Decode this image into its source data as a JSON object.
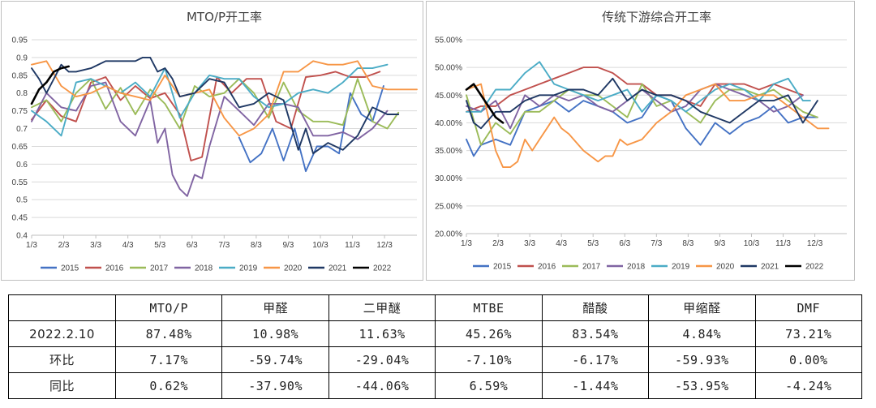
{
  "chart_data": [
    {
      "type": "line",
      "title": "MTO/P开工率",
      "ylim": [
        0.4,
        0.95
      ],
      "yticks": [
        "0.4",
        "0.45",
        "0.5",
        "0.55",
        "0.6",
        "0.65",
        "0.7",
        "0.75",
        "0.8",
        "0.85",
        "0.9",
        "0.95"
      ],
      "xlim": [
        0,
        52
      ],
      "xtick_labels": [
        "1/3",
        "2/3",
        "3/3",
        "4/3",
        "5/3",
        "6/3",
        "7/3",
        "8/3",
        "9/3",
        "10/3",
        "11/3",
        "12/3"
      ],
      "legend_position": "bottom",
      "series": [
        {
          "name": "2015",
          "color": "#4472C4",
          "x": [
            28,
            29.5,
            31,
            32.5,
            34,
            35.5,
            37,
            38.5,
            40,
            41.5,
            43,
            44.5,
            46,
            47.5
          ],
          "values": [
            0.675,
            0.605,
            0.63,
            0.7,
            0.61,
            0.7,
            0.58,
            0.65,
            0.65,
            0.63,
            0.8,
            0.74,
            0.72,
            0.82
          ]
        },
        {
          "name": "2016",
          "color": "#C0504D",
          "x": [
            0,
            2,
            4,
            6,
            8,
            10,
            12,
            14,
            16,
            18,
            20,
            21.5,
            23,
            25,
            27,
            29,
            31,
            33,
            35,
            37,
            39,
            41,
            43,
            45,
            47
          ],
          "values": [
            0.725,
            0.78,
            0.735,
            0.72,
            0.83,
            0.845,
            0.78,
            0.82,
            0.785,
            0.8,
            0.74,
            0.61,
            0.62,
            0.845,
            0.8,
            0.84,
            0.84,
            0.72,
            0.7,
            0.845,
            0.85,
            0.86,
            0.845,
            0.845,
            0.86
          ]
        },
        {
          "name": "2017",
          "color": "#9BBB59",
          "x": [
            0,
            2,
            4,
            6,
            8,
            10,
            12,
            14,
            16,
            18,
            20,
            22,
            24,
            26,
            28,
            30,
            32,
            34,
            36,
            38,
            40,
            42,
            44,
            46,
            48,
            49.5
          ],
          "values": [
            0.76,
            0.78,
            0.72,
            0.8,
            0.84,
            0.755,
            0.815,
            0.74,
            0.81,
            0.77,
            0.7,
            0.82,
            0.79,
            0.8,
            0.84,
            0.8,
            0.73,
            0.83,
            0.75,
            0.72,
            0.72,
            0.71,
            0.84,
            0.72,
            0.7,
            0.745
          ]
        },
        {
          "name": "2018",
          "color": "#8064A2",
          "x": [
            0,
            2,
            4,
            6,
            8,
            10,
            12,
            14,
            16,
            17,
            18,
            19,
            20,
            21,
            22,
            23,
            24,
            26,
            28,
            30,
            32,
            34,
            36,
            38,
            40,
            42,
            44,
            46,
            48
          ],
          "values": [
            0.72,
            0.8,
            0.76,
            0.75,
            0.82,
            0.83,
            0.72,
            0.68,
            0.78,
            0.66,
            0.7,
            0.57,
            0.53,
            0.51,
            0.57,
            0.56,
            0.65,
            0.79,
            0.75,
            0.71,
            0.77,
            0.77,
            0.76,
            0.68,
            0.68,
            0.69,
            0.67,
            0.7,
            0.75
          ]
        },
        {
          "name": "2019",
          "color": "#4BACC6",
          "x": [
            0,
            2,
            4,
            6,
            8,
            10,
            12,
            14,
            16,
            18,
            20,
            22,
            24,
            26,
            28,
            30,
            32,
            34,
            36,
            38,
            40,
            42,
            44,
            46,
            48
          ],
          "values": [
            0.75,
            0.72,
            0.68,
            0.83,
            0.84,
            0.82,
            0.8,
            0.83,
            0.79,
            0.87,
            0.73,
            0.8,
            0.85,
            0.84,
            0.84,
            0.79,
            0.76,
            0.77,
            0.8,
            0.81,
            0.8,
            0.83,
            0.87,
            0.87,
            0.88
          ]
        },
        {
          "name": "2020",
          "color": "#F79646",
          "x": [
            0,
            2,
            4,
            6,
            8,
            10,
            12,
            14,
            16,
            18,
            20,
            22,
            24,
            26,
            28,
            30,
            32,
            34,
            36,
            38,
            40,
            42,
            44,
            46,
            48,
            50,
            52
          ],
          "values": [
            0.88,
            0.89,
            0.82,
            0.79,
            0.8,
            0.82,
            0.8,
            0.79,
            0.78,
            0.85,
            0.79,
            0.8,
            0.81,
            0.73,
            0.68,
            0.7,
            0.74,
            0.86,
            0.86,
            0.89,
            0.88,
            0.88,
            0.89,
            0.82,
            0.81,
            0.81,
            0.81
          ]
        },
        {
          "name": "2021",
          "color": "#1F3864",
          "x": [
            0,
            1,
            2,
            3,
            4,
            5,
            6,
            8,
            10,
            12,
            14,
            15,
            16,
            17,
            18,
            19,
            20,
            22,
            24,
            26,
            28,
            30,
            32,
            34,
            36,
            37,
            38,
            40,
            42,
            44,
            46,
            48,
            49.5
          ],
          "values": [
            0.87,
            0.84,
            0.8,
            0.84,
            0.88,
            0.86,
            0.86,
            0.87,
            0.89,
            0.89,
            0.89,
            0.9,
            0.9,
            0.86,
            0.87,
            0.84,
            0.79,
            0.8,
            0.84,
            0.83,
            0.76,
            0.77,
            0.8,
            0.78,
            0.64,
            0.7,
            0.63,
            0.66,
            0.64,
            0.68,
            0.76,
            0.74,
            0.74
          ]
        },
        {
          "name": "2022",
          "color": "#000000",
          "x": [
            0,
            1,
            2,
            3,
            4,
            5
          ],
          "values": [
            0.77,
            0.81,
            0.83,
            0.86,
            0.87,
            0.875
          ]
        }
      ]
    },
    {
      "type": "line",
      "title": "传统下游综合开工率",
      "ylim": [
        20,
        55
      ],
      "yticks": [
        "20.00%",
        "25.00%",
        "30.00%",
        "35.00%",
        "40.00%",
        "45.00%",
        "50.00%",
        "55.00%"
      ],
      "xlim": [
        0,
        52
      ],
      "xtick_labels": [
        "1/3",
        "2/3",
        "3/3",
        "4/3",
        "5/3",
        "6/3",
        "7/3",
        "8/3",
        "9/3",
        "10/3",
        "11/3",
        "12/3"
      ],
      "legend_position": "bottom",
      "series": [
        {
          "name": "2015",
          "color": "#4472C4",
          "x": [
            0,
            1,
            2,
            4,
            6,
            8,
            10,
            12,
            14,
            16,
            18,
            20,
            22,
            24,
            26,
            28,
            30,
            32,
            34,
            36,
            38,
            40,
            42,
            44,
            46,
            48
          ],
          "values": [
            37,
            34,
            36,
            37,
            36,
            42,
            43,
            44,
            42,
            44,
            43,
            42,
            40,
            41,
            45,
            44,
            39,
            36,
            40,
            38,
            40,
            41,
            43,
            40,
            41,
            41
          ]
        },
        {
          "name": "2016",
          "color": "#C0504D",
          "x": [
            0,
            2,
            4,
            6,
            8,
            10,
            12,
            14,
            16,
            18,
            20,
            22,
            24,
            26,
            28,
            30,
            32,
            34,
            36,
            38,
            40,
            42,
            44,
            46
          ],
          "values": [
            42,
            43,
            43,
            45,
            46,
            47,
            48,
            49,
            50,
            50,
            49,
            47,
            47,
            45,
            45,
            44,
            43,
            47,
            47,
            47,
            46,
            47,
            46,
            45
          ]
        },
        {
          "name": "2017",
          "color": "#9BBB59",
          "x": [
            0,
            2,
            4,
            6,
            8,
            10,
            12,
            14,
            16,
            18,
            20,
            22,
            24,
            26,
            28,
            30,
            32,
            34,
            36,
            38,
            40,
            42,
            44,
            46,
            48
          ],
          "values": [
            45,
            36,
            40,
            38,
            42,
            42,
            44,
            46,
            45,
            45,
            43,
            41,
            47,
            43,
            44,
            42,
            40,
            44,
            46,
            46,
            45,
            46,
            44,
            42,
            41
          ]
        },
        {
          "name": "2018",
          "color": "#8064A2",
          "x": [
            0,
            2,
            4,
            6,
            8,
            10,
            12,
            14,
            16,
            18,
            20,
            22,
            24,
            26,
            28,
            30,
            32,
            34,
            36,
            38,
            40,
            42,
            44,
            46
          ],
          "values": [
            43,
            42,
            44,
            39,
            45,
            43,
            45,
            44,
            45,
            43,
            42,
            44,
            46,
            44,
            42,
            43,
            46,
            47,
            46,
            45,
            44,
            42,
            43,
            45
          ]
        },
        {
          "name": "2019",
          "color": "#4BACC6",
          "x": [
            0,
            2,
            4,
            6,
            8,
            10,
            12,
            14,
            16,
            18,
            20,
            22,
            24,
            26,
            28,
            30,
            32,
            34,
            36,
            38,
            40,
            42,
            44,
            46,
            47
          ],
          "values": [
            42,
            42,
            46,
            46,
            49,
            51,
            47,
            46,
            45,
            44,
            45,
            46,
            42,
            45,
            44,
            42,
            44,
            46,
            47,
            46,
            44,
            47,
            48,
            44,
            44
          ]
        },
        {
          "name": "2020",
          "color": "#F79646",
          "x": [
            0,
            2,
            4,
            5,
            6,
            7,
            8,
            9,
            10,
            11,
            12,
            13,
            14,
            16,
            18,
            19,
            20,
            21,
            22,
            24,
            26,
            28,
            30,
            32,
            34,
            36,
            38,
            40,
            42,
            44,
            46,
            48,
            49.5
          ],
          "values": [
            46,
            47,
            35,
            32,
            32,
            33,
            37,
            35,
            37,
            39,
            41,
            39,
            38,
            35,
            33,
            34,
            34,
            37,
            36,
            37,
            40,
            42,
            45,
            46,
            47,
            44,
            44,
            45,
            45,
            43,
            41,
            39,
            39
          ]
        },
        {
          "name": "2021",
          "color": "#1F3864",
          "x": [
            0,
            1,
            2,
            4,
            6,
            8,
            10,
            12,
            14,
            16,
            18,
            20,
            22,
            24,
            26,
            28,
            30,
            32,
            34,
            36,
            38,
            40,
            42,
            44,
            46,
            48
          ],
          "values": [
            44,
            40,
            39,
            42,
            42,
            44,
            45,
            45,
            46,
            46,
            45,
            48,
            44,
            46,
            45,
            45,
            44,
            42,
            41,
            40,
            42,
            44,
            44,
            45,
            40,
            44
          ]
        },
        {
          "name": "2022",
          "color": "#000000",
          "x": [
            0,
            1,
            2,
            3,
            4,
            5
          ],
          "values": [
            46,
            47,
            45,
            43,
            41,
            40
          ]
        }
      ]
    }
  ],
  "table": {
    "header": [
      "",
      "MTO/P",
      "甲醛",
      "二甲醚",
      "MTBE",
      "醋酸",
      "甲缩醛",
      "DMF"
    ],
    "rows": [
      {
        "label": "2022.2.10",
        "values": [
          "87.48%",
          "10.98%",
          "11.63%",
          "45.26%",
          "83.54%",
          "4.84%",
          "73.21%"
        ]
      },
      {
        "label": "环比",
        "values": [
          "7.17%",
          "-59.74%",
          "-29.04%",
          "-7.10%",
          "-6.17%",
          "-59.93%",
          "0.00%"
        ]
      },
      {
        "label": "同比",
        "values": [
          "0.62%",
          "-37.90%",
          "-44.06%",
          "6.59%",
          "-1.44%",
          "-53.95%",
          "-4.24%"
        ]
      }
    ]
  }
}
